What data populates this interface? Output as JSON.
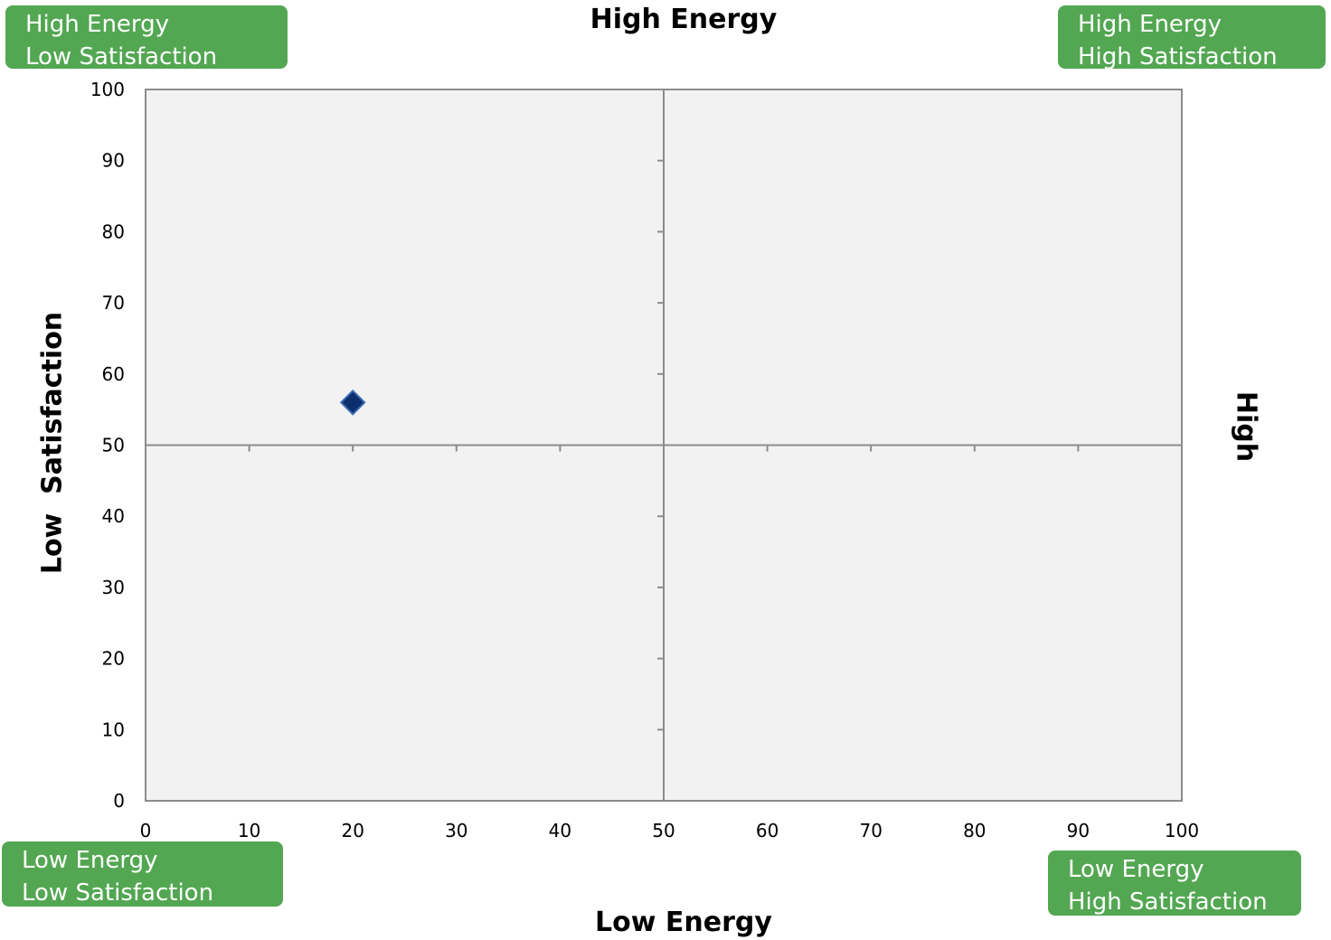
{
  "quadrant_labels": {
    "top_left": [
      "High Energy",
      "Low Satisfaction"
    ],
    "top_right": [
      "High Energy",
      "High Satisfaction"
    ],
    "bottom_left": [
      "Low Energy",
      "Low Satisfaction"
    ],
    "bottom_right": [
      "Low Energy",
      "High Satisfaction"
    ]
  },
  "axis_titles": {
    "top": "High Energy",
    "bottom": "Low Energy",
    "left": "Low  Satisfaction",
    "right": "High"
  },
  "colors": {
    "label_bg": "#53a752",
    "plot_bg": "#f2f2f2",
    "axis": "#8c8c8c",
    "marker": "#0d2e6e"
  },
  "chart_data": {
    "type": "scatter",
    "title": "",
    "xlabel": "",
    "ylabel": "",
    "xlim": [
      0,
      100
    ],
    "ylim": [
      0,
      100
    ],
    "x_ticks": [
      0,
      10,
      20,
      30,
      40,
      50,
      60,
      70,
      80,
      90,
      100
    ],
    "y_ticks": [
      0,
      10,
      20,
      30,
      40,
      50,
      60,
      70,
      80,
      90,
      100
    ],
    "grid": false,
    "quadrant_lines": {
      "x": 50,
      "y": 50
    },
    "marker": "diamond",
    "series": [
      {
        "points": [
          {
            "x": 20,
            "y": 56
          }
        ]
      }
    ]
  }
}
